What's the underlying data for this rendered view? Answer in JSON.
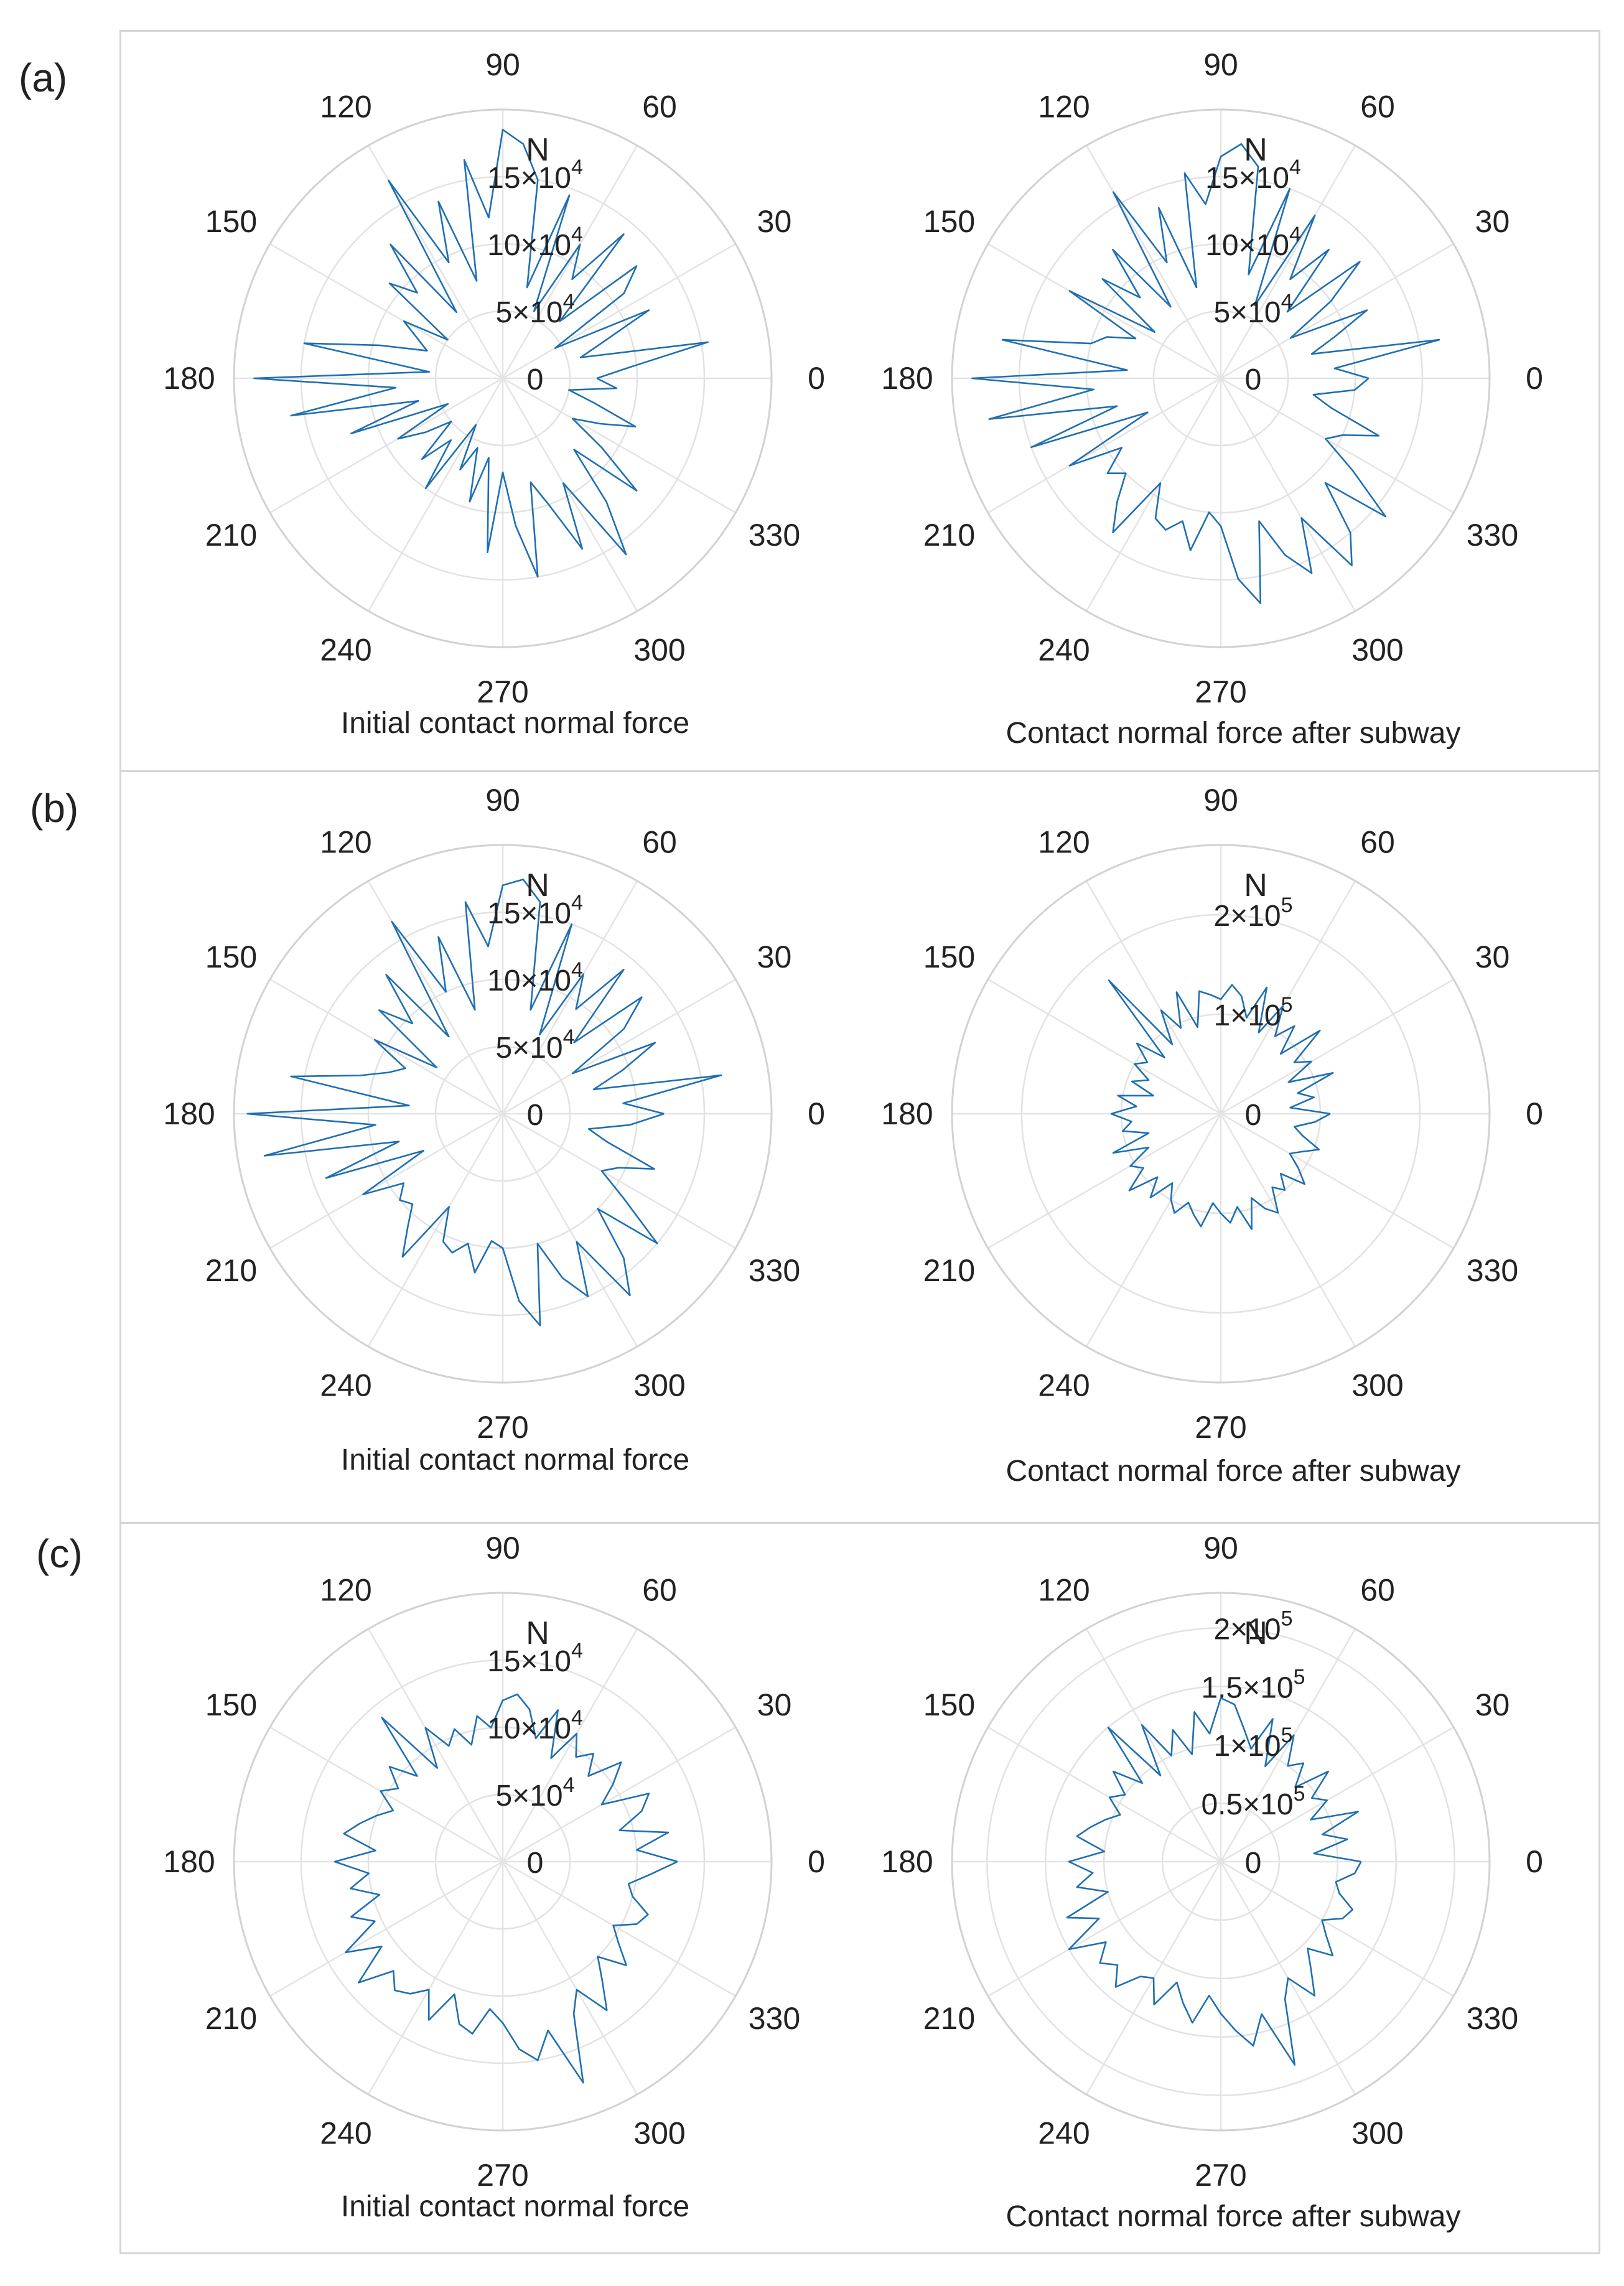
{
  "figure": {
    "row_labels": [
      "(a)",
      "(b)",
      "(c)"
    ]
  },
  "colors": {
    "series": "#1f6fb2",
    "grid": "#e2e2e2",
    "text": "#222222"
  },
  "chart_data": [
    {
      "type": "polar-line",
      "row": "(a)",
      "title": "Initial contact normal force",
      "unit": "N",
      "angle_ticks": [
        "0",
        "30",
        "60",
        "90",
        "120",
        "150",
        "180",
        "210",
        "240",
        "270",
        "300",
        "330"
      ],
      "radial_ticks": [
        {
          "value": 0,
          "label": "0"
        },
        {
          "value": 50000,
          "label": "5×10",
          "exp": "4"
        },
        {
          "value": 100000,
          "label": "10×10",
          "exp": "4"
        },
        {
          "value": 150000,
          "label": "15×10",
          "exp": "4"
        }
      ],
      "rmax": 200000,
      "angles_deg": [
        0,
        5,
        10,
        15,
        20,
        25,
        30,
        35,
        40,
        45,
        50,
        55,
        60,
        65,
        70,
        75,
        80,
        85,
        90,
        95,
        100,
        105,
        110,
        115,
        120,
        125,
        130,
        135,
        140,
        145,
        150,
        155,
        160,
        165,
        170,
        175,
        180,
        185,
        190,
        195,
        200,
        205,
        210,
        215,
        220,
        225,
        230,
        235,
        240,
        245,
        250,
        255,
        260,
        265,
        270,
        275,
        280,
        285,
        290,
        295,
        300,
        305,
        310,
        315,
        320,
        325,
        330,
        335,
        340,
        345,
        350,
        355
      ],
      "values": [
        70000,
        95000,
        155000,
        60000,
        80000,
        120000,
        45000,
        110000,
        130000,
        60000,
        140000,
        90000,
        115000,
        55000,
        145000,
        70000,
        150000,
        175000,
        185000,
        120000,
        165000,
        75000,
        140000,
        95000,
        170000,
        60000,
        130000,
        90000,
        110000,
        50000,
        85000,
        70000,
        60000,
        95000,
        150000,
        55000,
        185000,
        80000,
        160000,
        65000,
        120000,
        45000,
        90000,
        70000,
        50000,
        85000,
        60000,
        100000,
        40000,
        75000,
        55000,
        95000,
        60000,
        130000,
        70000,
        110000,
        150000,
        80000,
        100000,
        140000,
        90000,
        160000,
        120000,
        75000,
        130000,
        90000,
        60000,
        80000,
        105000,
        70000,
        50000,
        85000
      ]
    },
    {
      "type": "polar-line",
      "row": "(a)",
      "title": "Contact normal force after subway",
      "unit": "N",
      "angle_ticks": [
        "0",
        "30",
        "60",
        "90",
        "120",
        "150",
        "180",
        "210",
        "240",
        "270",
        "300",
        "330"
      ],
      "radial_ticks": [
        {
          "value": 0,
          "label": "0"
        },
        {
          "value": 50000,
          "label": "5×10",
          "exp": "4"
        },
        {
          "value": 100000,
          "label": "10×10",
          "exp": "4"
        },
        {
          "value": 150000,
          "label": "15×10",
          "exp": "4"
        }
      ],
      "rmax": 200000,
      "angles_deg": [
        0,
        5,
        10,
        15,
        20,
        25,
        30,
        35,
        40,
        45,
        50,
        55,
        60,
        65,
        70,
        75,
        80,
        85,
        90,
        95,
        100,
        105,
        110,
        115,
        120,
        125,
        130,
        135,
        140,
        145,
        150,
        155,
        160,
        165,
        170,
        175,
        180,
        185,
        190,
        195,
        200,
        205,
        210,
        215,
        220,
        225,
        230,
        235,
        240,
        245,
        250,
        255,
        260,
        265,
        270,
        275,
        280,
        285,
        290,
        295,
        300,
        305,
        310,
        315,
        320,
        325,
        330,
        335,
        340,
        345,
        350,
        355
      ],
      "values": [
        110000,
        85000,
        165000,
        70000,
        90000,
        120000,
        60000,
        100000,
        135000,
        70000,
        125000,
        90000,
        140000,
        60000,
        150000,
        80000,
        160000,
        175000,
        165000,
        130000,
        155000,
        70000,
        135000,
        95000,
        160000,
        65000,
        125000,
        85000,
        115000,
        60000,
        130000,
        70000,
        90000,
        100000,
        165000,
        70000,
        185000,
        95000,
        175000,
        80000,
        150000,
        60000,
        130000,
        90000,
        110000,
        100000,
        120000,
        140000,
        90000,
        115000,
        120000,
        110000,
        130000,
        100000,
        110000,
        150000,
        170000,
        110000,
        140000,
        160000,
        120000,
        170000,
        150000,
        110000,
        160000,
        120000,
        90000,
        100000,
        125000,
        85000,
        70000,
        100000
      ]
    },
    {
      "type": "polar-line",
      "row": "(b)",
      "title": "Initial contact normal force",
      "unit": "N",
      "angle_ticks": [
        "0",
        "30",
        "60",
        "90",
        "120",
        "150",
        "180",
        "210",
        "240",
        "270",
        "300",
        "330"
      ],
      "radial_ticks": [
        {
          "value": 0,
          "label": "0"
        },
        {
          "value": 50000,
          "label": "5×10",
          "exp": "4"
        },
        {
          "value": 100000,
          "label": "10×10",
          "exp": "4"
        },
        {
          "value": 150000,
          "label": "15×10",
          "exp": "4"
        }
      ],
      "rmax": 200000,
      "angles_deg": [
        0,
        5,
        10,
        15,
        20,
        25,
        30,
        35,
        40,
        45,
        50,
        55,
        60,
        65,
        70,
        75,
        80,
        85,
        90,
        95,
        100,
        105,
        110,
        115,
        120,
        125,
        130,
        135,
        140,
        145,
        150,
        155,
        160,
        165,
        170,
        175,
        180,
        185,
        190,
        195,
        200,
        205,
        210,
        215,
        220,
        225,
        230,
        235,
        240,
        245,
        250,
        255,
        260,
        265,
        270,
        275,
        280,
        285,
        290,
        295,
        300,
        305,
        310,
        315,
        320,
        325,
        330,
        335,
        340,
        345,
        350,
        355
      ],
      "values": [
        120000,
        90000,
        165000,
        70000,
        95000,
        125000,
        60000,
        110000,
        135000,
        75000,
        140000,
        95000,
        120000,
        65000,
        150000,
        80000,
        160000,
        175000,
        170000,
        125000,
        160000,
        80000,
        140000,
        100000,
        165000,
        70000,
        135000,
        95000,
        120000,
        60000,
        110000,
        80000,
        90000,
        110000,
        160000,
        70000,
        190000,
        95000,
        180000,
        80000,
        140000,
        65000,
        120000,
        90000,
        100000,
        95000,
        110000,
        130000,
        80000,
        105000,
        110000,
        100000,
        120000,
        95000,
        100000,
        140000,
        160000,
        100000,
        130000,
        150000,
        110000,
        165000,
        140000,
        100000,
        150000,
        110000,
        85000,
        95000,
        120000,
        80000,
        65000,
        95000
      ]
    },
    {
      "type": "polar-line",
      "row": "(b)",
      "title": "Contact normal force after subway",
      "unit": "N",
      "angle_ticks": [
        "0",
        "30",
        "60",
        "90",
        "120",
        "150",
        "180",
        "210",
        "240",
        "270",
        "300",
        "330"
      ],
      "radial_ticks": [
        {
          "value": 0,
          "label": "0"
        },
        {
          "value": 100000,
          "label": "1×10",
          "exp": "5"
        },
        {
          "value": 200000,
          "label": "2×10",
          "exp": "5"
        }
      ],
      "rmax": 270000,
      "angles_deg": [
        0,
        5,
        10,
        15,
        20,
        25,
        30,
        35,
        40,
        45,
        50,
        55,
        60,
        65,
        70,
        75,
        80,
        85,
        90,
        95,
        100,
        105,
        110,
        115,
        120,
        125,
        130,
        135,
        140,
        145,
        150,
        155,
        160,
        165,
        170,
        175,
        180,
        185,
        190,
        195,
        200,
        205,
        210,
        215,
        220,
        225,
        230,
        235,
        240,
        245,
        250,
        255,
        260,
        265,
        270,
        275,
        280,
        285,
        290,
        295,
        300,
        305,
        310,
        315,
        320,
        325,
        330,
        335,
        340,
        345,
        350,
        355
      ],
      "values": [
        110000,
        70000,
        95000,
        80000,
        120000,
        75000,
        105000,
        90000,
        130000,
        85000,
        115000,
        95000,
        125000,
        90000,
        135000,
        100000,
        120000,
        130000,
        115000,
        120000,
        125000,
        90000,
        130000,
        95000,
        120000,
        85000,
        175000,
        80000,
        110000,
        90000,
        100000,
        80000,
        95000,
        70000,
        105000,
        85000,
        110000,
        90000,
        100000,
        75000,
        115000,
        80000,
        105000,
        95000,
        120000,
        90000,
        110000,
        85000,
        100000,
        110000,
        95000,
        105000,
        115000,
        90000,
        100000,
        110000,
        95000,
        120000,
        90000,
        105000,
        115000,
        90000,
        100000,
        85000,
        110000,
        95000,
        80000,
        90000,
        105000,
        85000,
        75000,
        95000
      ]
    },
    {
      "type": "polar-line",
      "row": "(c)",
      "title": "Initial contact normal force",
      "unit": "N",
      "angle_ticks": [
        "0",
        "30",
        "60",
        "90",
        "120",
        "150",
        "180",
        "210",
        "240",
        "270",
        "300",
        "330"
      ],
      "radial_ticks": [
        {
          "value": 0,
          "label": "0"
        },
        {
          "value": 50000,
          "label": "5×10",
          "exp": "4"
        },
        {
          "value": 100000,
          "label": "10×10",
          "exp": "4"
        },
        {
          "value": 150000,
          "label": "15×10",
          "exp": "4"
        }
      ],
      "rmax": 200000,
      "angles_deg": [
        0,
        5,
        10,
        15,
        20,
        25,
        30,
        35,
        40,
        45,
        50,
        55,
        60,
        65,
        70,
        75,
        80,
        85,
        90,
        95,
        100,
        105,
        110,
        115,
        120,
        125,
        130,
        135,
        140,
        145,
        150,
        155,
        160,
        165,
        170,
        175,
        180,
        185,
        190,
        195,
        200,
        205,
        210,
        215,
        220,
        225,
        230,
        235,
        240,
        245,
        250,
        255,
        260,
        265,
        270,
        275,
        280,
        285,
        290,
        295,
        300,
        305,
        310,
        315,
        320,
        325,
        330,
        335,
        340,
        345,
        350,
        355
      ],
      "values": [
        130000,
        100000,
        125000,
        90000,
        110000,
        120000,
        85000,
        100000,
        115000,
        90000,
        105000,
        95000,
        110000,
        85000,
        120000,
        95000,
        115000,
        125000,
        120000,
        100000,
        110000,
        90000,
        105000,
        95000,
        115000,
        85000,
        140000,
        90000,
        110000,
        95000,
        105000,
        90000,
        100000,
        110000,
        120000,
        95000,
        125000,
        100000,
        115000,
        95000,
        120000,
        105000,
        135000,
        110000,
        140000,
        115000,
        125000,
        120000,
        110000,
        130000,
        105000,
        125000,
        130000,
        110000,
        120000,
        140000,
        150000,
        130000,
        175000,
        125000,
        110000,
        135000,
        115000,
        100000,
        120000,
        105000,
        95000,
        110000,
        115000,
        100000,
        95000,
        110000
      ]
    },
    {
      "type": "polar-line",
      "row": "(c)",
      "title": "Contact normal force after subway",
      "unit": "N",
      "angle_ticks": [
        "0",
        "30",
        "60",
        "90",
        "120",
        "150",
        "180",
        "210",
        "240",
        "270",
        "300",
        "330"
      ],
      "radial_ticks": [
        {
          "value": 0,
          "label": "0"
        },
        {
          "value": 50000,
          "label": "0.5×10",
          "exp": "5"
        },
        {
          "value": 100000,
          "label": "1×10",
          "exp": "5"
        },
        {
          "value": 150000,
          "label": "1.5×10",
          "exp": "5"
        },
        {
          "value": 200000,
          "label": "2×10",
          "exp": "5"
        }
      ],
      "rmax": 230000,
      "angles_deg": [
        0,
        5,
        10,
        15,
        20,
        25,
        30,
        35,
        40,
        45,
        50,
        55,
        60,
        65,
        70,
        75,
        80,
        85,
        90,
        95,
        100,
        105,
        110,
        115,
        120,
        125,
        130,
        135,
        140,
        145,
        150,
        155,
        160,
        165,
        170,
        175,
        180,
        185,
        190,
        195,
        200,
        205,
        210,
        215,
        220,
        225,
        230,
        235,
        240,
        245,
        250,
        255,
        260,
        265,
        270,
        275,
        280,
        285,
        290,
        295,
        300,
        305,
        310,
        315,
        320,
        325,
        330,
        335,
        340,
        345,
        350,
        355
      ],
      "values": [
        120000,
        80000,
        110000,
        90000,
        125000,
        85000,
        105000,
        95000,
        120000,
        90000,
        110000,
        100000,
        125000,
        90000,
        130000,
        100000,
        115000,
        135000,
        140000,
        110000,
        130000,
        95000,
        120000,
        100000,
        135000,
        90000,
        150000,
        95000,
        120000,
        100000,
        110000,
        95000,
        105000,
        115000,
        125000,
        100000,
        130000,
        110000,
        125000,
        100000,
        140000,
        115000,
        150000,
        120000,
        135000,
        125000,
        140000,
        120000,
        115000,
        135000,
        110000,
        125000,
        140000,
        115000,
        130000,
        145000,
        160000,
        135000,
        185000,
        130000,
        115000,
        140000,
        120000,
        105000,
        125000,
        110000,
        100000,
        115000,
        120000,
        105000,
        100000,
        115000
      ]
    }
  ]
}
